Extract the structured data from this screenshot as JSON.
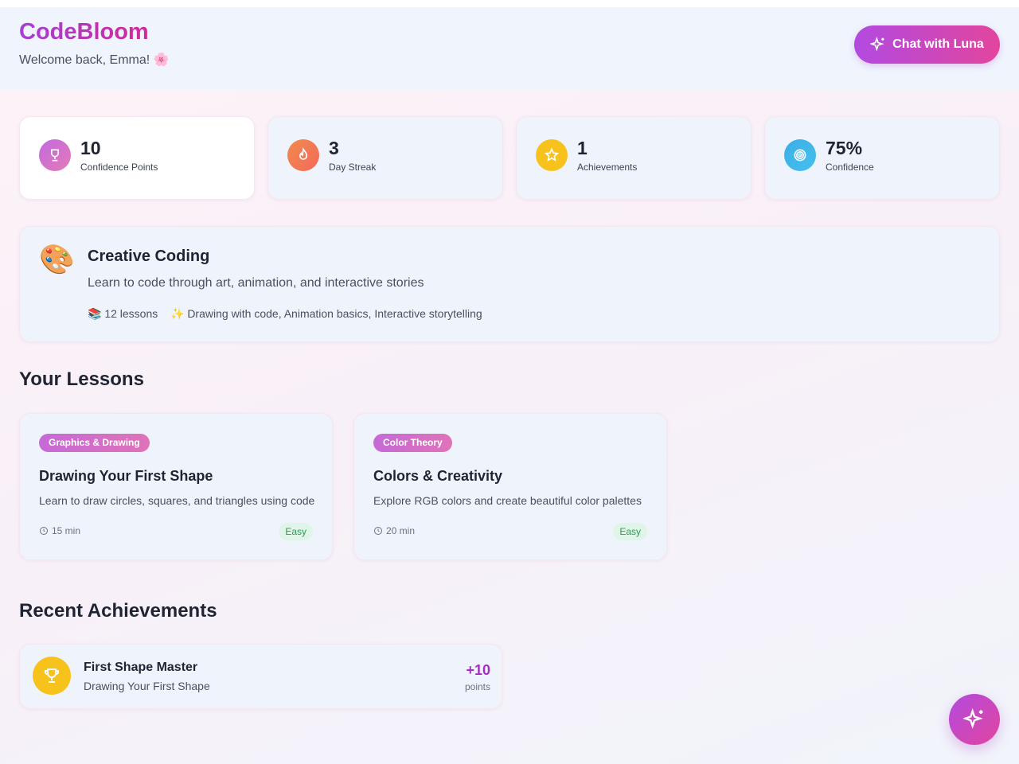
{
  "header": {
    "brand": "CodeBloom",
    "welcome": "Welcome back, Emma! 🌸",
    "chat_button": "Chat with Luna"
  },
  "stats": [
    {
      "value": "10",
      "label": "Confidence Points"
    },
    {
      "value": "3",
      "label": "Day Streak"
    },
    {
      "value": "1",
      "label": "Achievements"
    },
    {
      "value": "75%",
      "label": "Confidence"
    }
  ],
  "course": {
    "icon": "🎨",
    "title": "Creative Coding",
    "description": "Learn to code through art, animation, and interactive stories",
    "lessons": "📚 12 lessons",
    "topics": "✨ Drawing with code, Animation basics, Interactive storytelling"
  },
  "lessons_section": {
    "title": "Your Lessons",
    "lessons": [
      {
        "tag": "Graphics & Drawing",
        "title": "Drawing Your First Shape",
        "description": "Learn to draw circles, squares, and triangles using code",
        "duration": "15 min",
        "difficulty": "Easy"
      },
      {
        "tag": "Color Theory",
        "title": "Colors & Creativity",
        "description": "Explore RGB colors and create beautiful color palettes",
        "duration": "20 min",
        "difficulty": "Easy"
      }
    ]
  },
  "achievements_section": {
    "title": "Recent Achievements",
    "items": [
      {
        "title": "First Shape Master",
        "subtitle": "Drawing Your First Shape",
        "points": "+10",
        "points_label": "points"
      }
    ]
  }
}
